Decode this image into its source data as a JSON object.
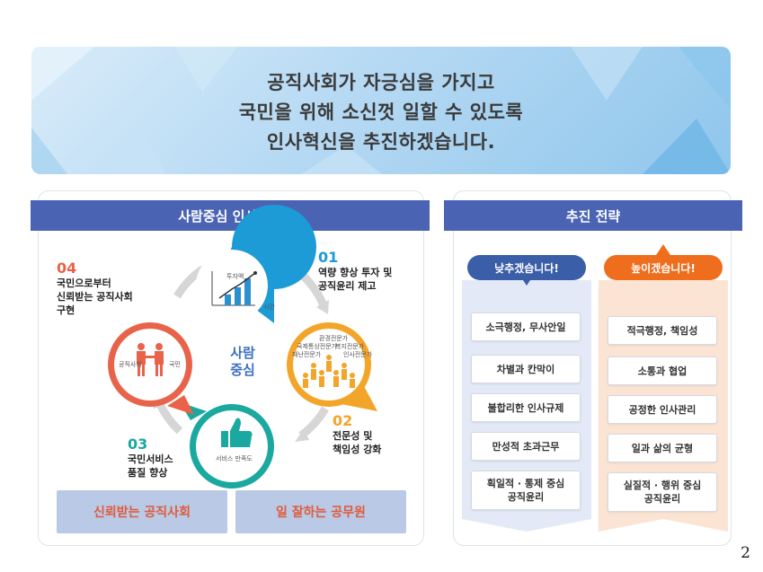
{
  "banner": {
    "line1": "공직사회가 자긍심을 가지고",
    "line2": "국민을 위해 소신껏 일할 수 있도록",
    "line3": "인사혁신을 추진하겠습니다."
  },
  "left_panel": {
    "title": "사람중심 인사혁신",
    "center_line1": "사람",
    "center_line2": "중심",
    "nodes": [
      {
        "num": "01",
        "line1": "역량 향상 투자 및",
        "line2": "공직윤리 제고",
        "color": "#1c9bd6"
      },
      {
        "num": "02",
        "line1": "전문성 및",
        "line2": "책임성 강화",
        "color": "#f3a52a"
      },
      {
        "num": "03",
        "line1": "국민서비스",
        "line2": "품질 향상",
        "color": "#1aa8a0"
      },
      {
        "num": "04",
        "line1": "국민으로부터",
        "line2": "신뢰받는 공직사회",
        "line3": "구현",
        "color": "#e8634a"
      }
    ],
    "circle_labels": {
      "invest": "투자액",
      "time": "시간",
      "experts_top": "환경전문가",
      "experts_mid1": "국제통상전문가",
      "experts_mid2": "복지전문가",
      "experts_low1": "재난전문가",
      "experts_low2": "인사전문가",
      "satisfaction": "서비스 만족도",
      "public_official": "공직사회",
      "citizen": "국민"
    },
    "bottom_left": "신뢰받는 공직사회",
    "bottom_right": "일 잘하는 공무원"
  },
  "right_panel": {
    "title": "추진 전략",
    "lower_label": "낮추겠습니다!",
    "raise_label": "높이겠습니다!",
    "lower_items": [
      "소극행정, 무사안일",
      "차별과 칸막이",
      "불합리한 인사규제",
      "만성적 초과근무",
      "획일적 · 통제 중심",
      "공직윤리"
    ],
    "raise_items": [
      "적극행정, 책임성",
      "소통과 협업",
      "공정한 인사관리",
      "일과 삶의 균형",
      "실질적 · 행위 중심",
      "공직윤리"
    ]
  },
  "page_number": "2",
  "colors": {
    "header_blue": "#4a63b3",
    "lower_blue": "#3a5ea8",
    "raise_orange": "#ee6e1e"
  }
}
